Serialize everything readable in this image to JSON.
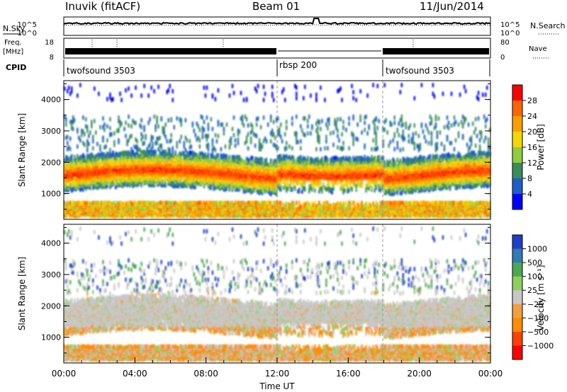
{
  "header": {
    "site": "Inuvik (fitACF)",
    "beam": "Beam 01",
    "date": "11/Jun/2014"
  },
  "summary_panels": {
    "nsky_label": "N.Sky",
    "nsky_ticks": [
      "10^5",
      "10^0"
    ],
    "nsearch_label": "N.Search",
    "nsearch_ticks": [
      "10^5",
      "10^0"
    ],
    "freq_label_top": "Freq.",
    "freq_label_bottom": "[MHz]",
    "freq_ticks": [
      "18",
      "8"
    ],
    "nave_label": "Nave",
    "nave_ticks": [
      "80",
      "0"
    ],
    "cpid_label": "CPID",
    "programs": [
      {
        "name": "twofsound 3503",
        "start_hour": 0,
        "end_hour": 12
      },
      {
        "name": "rbsp 200",
        "start_hour": 12,
        "end_hour": 18
      },
      {
        "name": "twofsound 3503",
        "start_hour": 18,
        "end_hour": 24
      }
    ]
  },
  "chart_data": [
    {
      "type": "heatmap",
      "name": "power-panel",
      "ylabel": "Slant Range [km]",
      "ylim": [
        180,
        4600
      ],
      "y_ticks": [
        1000,
        2000,
        3000,
        4000
      ],
      "colorbar_label": "Power [dB]",
      "colorbar_ticks": [
        "4",
        "8",
        "12",
        "16",
        "20",
        "24",
        "28"
      ],
      "colorbar_colors": [
        "#0000ff",
        "#1e5ec8",
        "#3a8c5a",
        "#8fce3c",
        "#f5d800",
        "#ff9d00",
        "#ff6400",
        "#ff0000"
      ],
      "features": [
        {
          "desc": "main band",
          "start_hour": 0,
          "end_hour": 24,
          "range_low": 900,
          "range_high": 2200,
          "level": "strong"
        },
        {
          "desc": "near range echoes",
          "start_hour": 0,
          "end_hour": 24,
          "range_low": 200,
          "range_high": 700,
          "level": "medium"
        }
      ]
    },
    {
      "type": "heatmap",
      "name": "velocity-panel",
      "ylabel": "Slant Range [km]",
      "xlabel": "Time UT",
      "ylim": [
        180,
        4600
      ],
      "y_ticks": [
        1000,
        2000,
        3000,
        4000
      ],
      "x_ticks": [
        "00:00",
        "04:00",
        "08:00",
        "12:00",
        "16:00",
        "20:00",
        "00:00"
      ],
      "colorbar_label": "Velocity [m s⁻¹]",
      "colorbar_ticks": [
        "1000",
        "500",
        "100",
        "25",
        "−25",
        "−100",
        "−500",
        "−1000"
      ],
      "colorbar_colors": [
        "#1f3fc8",
        "#2f7ab8",
        "#4aa850",
        "#8cd05a",
        "#c8c8c8",
        "#f0a040",
        "#ff8c00",
        "#ff4000",
        "#ff0000"
      ]
    }
  ]
}
